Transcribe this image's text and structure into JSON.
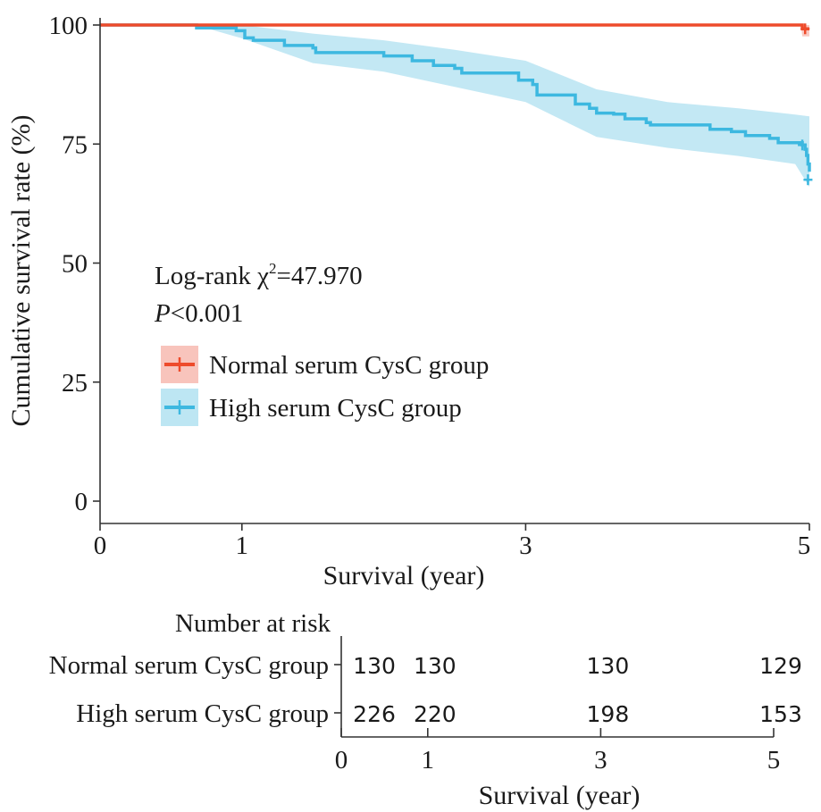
{
  "chart_data": {
    "type": "line",
    "subtype": "kaplan-meier",
    "xlabel": "Survival (year)",
    "ylabel": "Cumulative survival rate (%)",
    "xlim": [
      0,
      5
    ],
    "ylim": [
      0,
      100
    ],
    "x_ticks": [
      0,
      1,
      3,
      5
    ],
    "y_ticks": [
      0,
      25,
      50,
      75,
      100
    ],
    "grid": false,
    "legend_position": "center-left",
    "annotation": {
      "line1_prefix": "Log-rank ",
      "chi": "χ",
      "sup": "2",
      "line1_value": "=47.970",
      "p_letter": "P",
      "p_value": "<0.001"
    },
    "series": [
      {
        "name": "Normal serum CysC group",
        "color": "#ee4b2b",
        "points": [
          [
            0,
            100
          ],
          [
            4.94,
            100
          ],
          [
            4.95,
            99.2
          ],
          [
            5.0,
            99.2
          ]
        ],
        "censor_marks": [
          [
            4.97,
            99.2
          ]
        ],
        "ci_upper": [
          [
            0,
            100
          ],
          [
            5,
            100
          ]
        ],
        "ci_lower": [
          [
            0,
            100
          ],
          [
            4.94,
            100
          ],
          [
            4.95,
            97.6
          ],
          [
            5,
            97.6
          ]
        ]
      },
      {
        "name": "High serum CysC group",
        "color": "#3db8e0",
        "ci_color": "#bde6f3",
        "points": [
          [
            0,
            100
          ],
          [
            0.67,
            100
          ],
          [
            0.68,
            99.4
          ],
          [
            0.95,
            99.4
          ],
          [
            0.96,
            98.8
          ],
          [
            1.0,
            98.8
          ],
          [
            1.02,
            97.3
          ],
          [
            1.08,
            96.8
          ],
          [
            1.22,
            96.8
          ],
          [
            1.3,
            95.7
          ],
          [
            1.5,
            95.2
          ],
          [
            1.52,
            94.2
          ],
          [
            1.9,
            94.2
          ],
          [
            2.0,
            93.5
          ],
          [
            2.2,
            92.5
          ],
          [
            2.35,
            91.5
          ],
          [
            2.5,
            90.9
          ],
          [
            2.55,
            89.9
          ],
          [
            2.85,
            89.9
          ],
          [
            2.95,
            88.4
          ],
          [
            3.05,
            87.5
          ],
          [
            3.08,
            85.3
          ],
          [
            3.3,
            85.3
          ],
          [
            3.35,
            83.4
          ],
          [
            3.45,
            82.5
          ],
          [
            3.5,
            81.5
          ],
          [
            3.62,
            81.3
          ],
          [
            3.7,
            80.3
          ],
          [
            3.85,
            79.5
          ],
          [
            3.88,
            79.0
          ],
          [
            4.2,
            79.0
          ],
          [
            4.3,
            78.1
          ],
          [
            4.45,
            77.6
          ],
          [
            4.55,
            76.8
          ],
          [
            4.72,
            76.2
          ],
          [
            4.78,
            75.3
          ],
          [
            4.95,
            74.8
          ],
          [
            4.97,
            73.9
          ],
          [
            4.98,
            72.6
          ],
          [
            4.99,
            70.8
          ],
          [
            5.0,
            69.2
          ]
        ],
        "censor_marks": [
          [
            4.95,
            74.8
          ],
          [
            4.99,
            67.5
          ]
        ],
        "ci_upper": [
          [
            0,
            100
          ],
          [
            0.67,
            100
          ],
          [
            1.0,
            100
          ],
          [
            1.5,
            98.2
          ],
          [
            2.0,
            96.8
          ],
          [
            2.5,
            94.8
          ],
          [
            3.0,
            92.5
          ],
          [
            3.5,
            86.5
          ],
          [
            4.0,
            83.8
          ],
          [
            4.5,
            82.5
          ],
          [
            4.9,
            81.2
          ],
          [
            5,
            80.8
          ]
        ],
        "ci_lower": [
          [
            0,
            100
          ],
          [
            0.67,
            100
          ],
          [
            1.0,
            97.2
          ],
          [
            1.5,
            92.0
          ],
          [
            2.0,
            90.2
          ],
          [
            2.5,
            87.0
          ],
          [
            3.0,
            83.8
          ],
          [
            3.5,
            76.5
          ],
          [
            4.0,
            74.2
          ],
          [
            4.5,
            72.5
          ],
          [
            4.9,
            70.8
          ],
          [
            5,
            66.0
          ]
        ]
      }
    ]
  },
  "risk_table": {
    "title": "Number at risk",
    "xlabel": "Survival (year)",
    "x_ticks": [
      0,
      1,
      3,
      5
    ],
    "rows": [
      {
        "name": "Normal serum CysC group",
        "values": [
          "130",
          "130",
          "130",
          "129"
        ]
      },
      {
        "name": "High serum CysC group",
        "values": [
          "226",
          "220",
          "198",
          "153"
        ]
      }
    ]
  }
}
